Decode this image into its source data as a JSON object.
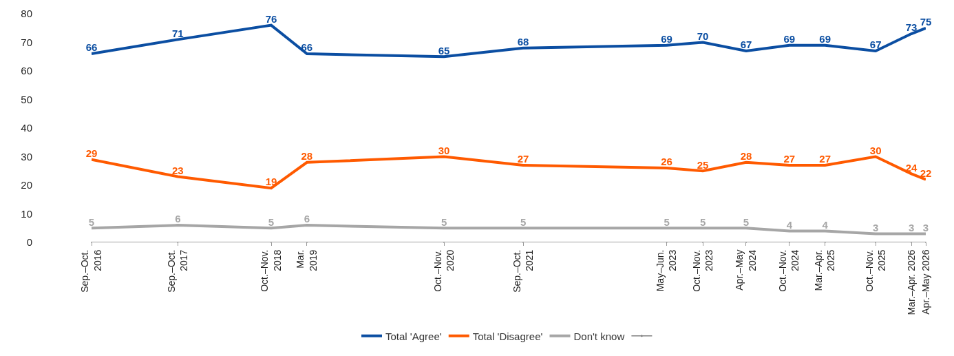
{
  "chart_data": {
    "type": "line",
    "x": [
      "2016-09",
      "2017-09",
      "2018-10",
      "2019-03",
      "2020-10",
      "2021-09",
      "2023-05",
      "2023-10",
      "2024-04",
      "2024-10",
      "2025-03",
      "2025-10",
      "2026-03",
      "2026-05"
    ],
    "series": [
      {
        "name": "Total 'Agree'",
        "color": "#0b4ea2",
        "values": [
          66,
          71,
          76,
          66,
          65,
          68,
          69,
          70,
          67,
          69,
          69,
          67,
          73,
          75
        ],
        "value_labels": [
          "66",
          "71",
          "76",
          "66",
          "65",
          "68",
          "69",
          "70",
          "67",
          "69",
          "69",
          "67",
          "73",
          "75"
        ]
      },
      {
        "name": "Total 'Disagree'",
        "color": "#ff5a00",
        "values": [
          29,
          23,
          19,
          28,
          30,
          27,
          26,
          25,
          28,
          27,
          27,
          30,
          24,
          22
        ],
        "value_labels": [
          "29",
          "23",
          "19",
          "28",
          "30",
          "27",
          "26",
          "25",
          "28",
          "27",
          "27",
          "30",
          "24",
          "22"
        ]
      },
      {
        "name": "Don't know",
        "color": "#a6a6a6",
        "values": [
          5,
          6,
          5,
          6,
          5,
          5,
          5,
          5,
          5,
          4,
          4,
          3,
          3,
          3
        ],
        "value_labels": [
          "5",
          "6",
          "5",
          "6",
          "5",
          "5",
          "5",
          "5",
          "5",
          "4",
          "4",
          "3",
          "3",
          "3"
        ]
      },
      {
        "color": "#7f7f7f",
        "marker": "cross",
        "values": [
          0,
          0,
          0,
          0,
          0,
          0,
          0,
          0,
          0,
          0,
          0,
          0,
          0,
          0
        ]
      }
    ],
    "xlim": [
      "2016-09",
      "2026-05"
    ],
    "xticks": [
      {
        "value": "2016-09",
        "label": "Sep.–Oct.\n2016"
      },
      {
        "value": "2017-09",
        "label": "Sep.–Oct.\n2017"
      },
      {
        "value": "2018-10",
        "label": "Oct.–Nov.\n2018"
      },
      {
        "value": "2019-03",
        "label": "Mar.\n2019"
      },
      {
        "value": "2020-10",
        "label": "Oct.–Nov.\n2020"
      },
      {
        "value": "2021-09",
        "label": "Sep.–Oct.\n2021"
      },
      {
        "value": "2023-05",
        "label": "May–Jun.\n2023"
      },
      {
        "value": "2023-10",
        "label": "Oct.–Nov.\n2023"
      },
      {
        "value": "2024-04",
        "label": "Apr.–May\n2024"
      },
      {
        "value": "2024-10",
        "label": "Oct.–Nov.\n2024"
      },
      {
        "value": "2025-03",
        "label": "Mar.–Apr.\n2025"
      },
      {
        "value": "2025-10",
        "label": "Oct.–Nov.\n2025"
      },
      {
        "value": "2026-03",
        "label": "Mar.–Apr. 2026"
      },
      {
        "value": "2026-05",
        "label": "Apr.–May 2026"
      }
    ],
    "ylim": [
      0,
      80
    ],
    "yticks": [
      0,
      10,
      20,
      30,
      40,
      50,
      60,
      70,
      80
    ],
    "grid": false,
    "legend": "bottom",
    "marker": "none",
    "line_style": "solid"
  }
}
